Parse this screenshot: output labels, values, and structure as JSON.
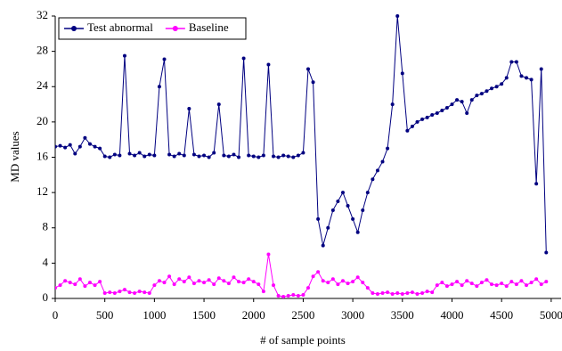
{
  "chart_data": {
    "type": "line",
    "xlabel": "# of sample points",
    "ylabel": "MD values",
    "x": [
      0,
      50,
      100,
      150,
      200,
      250,
      300,
      350,
      400,
      450,
      500,
      550,
      600,
      650,
      700,
      750,
      800,
      850,
      900,
      950,
      1000,
      1050,
      1100,
      1150,
      1200,
      1250,
      1300,
      1350,
      1400,
      1450,
      1500,
      1550,
      1600,
      1650,
      1700,
      1750,
      1800,
      1850,
      1900,
      1950,
      2000,
      2050,
      2100,
      2150,
      2200,
      2250,
      2300,
      2350,
      2400,
      2450,
      2500,
      2550,
      2600,
      2650,
      2700,
      2750,
      2800,
      2850,
      2900,
      2950,
      3000,
      3050,
      3100,
      3150,
      3200,
      3250,
      3300,
      3350,
      3400,
      3450,
      3500,
      3550,
      3600,
      3650,
      3700,
      3750,
      3800,
      3850,
      3900,
      3950,
      4000,
      4050,
      4100,
      4150,
      4200,
      4250,
      4300,
      4350,
      4400,
      4450,
      4500,
      4550,
      4600,
      4650,
      4700,
      4750,
      4800,
      4850,
      4900,
      4950
    ],
    "series": [
      {
        "name": "Test abnormal",
        "color": "#000080",
        "values": [
          17.2,
          17.3,
          17.1,
          17.4,
          16.4,
          17.2,
          18.2,
          17.5,
          17.2,
          17.0,
          16.1,
          16.0,
          16.3,
          16.2,
          27.5,
          16.4,
          16.2,
          16.5,
          16.1,
          16.3,
          16.2,
          24.0,
          27.1,
          16.3,
          16.1,
          16.4,
          16.2,
          21.5,
          16.3,
          16.1,
          16.2,
          16.0,
          16.5,
          22.0,
          16.2,
          16.1,
          16.3,
          16.0,
          27.2,
          16.2,
          16.1,
          16.0,
          16.2,
          26.5,
          16.1,
          16.0,
          16.2,
          16.1,
          16.0,
          16.2,
          16.5,
          26.0,
          24.5,
          9.0,
          6.0,
          8.0,
          10.0,
          11.0,
          12.0,
          10.5,
          9.0,
          7.5,
          10.0,
          12.0,
          13.5,
          14.5,
          15.5,
          17.0,
          22.0,
          32.0,
          25.5,
          19.0,
          19.5,
          20.0,
          20.3,
          20.5,
          20.8,
          21.0,
          21.3,
          21.6,
          22.0,
          22.5,
          22.3,
          21.0,
          22.5,
          23.0,
          23.2,
          23.5,
          23.8,
          24.0,
          24.3,
          25.0,
          26.8,
          26.8,
          25.2,
          25.0,
          24.8,
          13.0,
          26.0,
          5.2
        ]
      },
      {
        "name": "Baseline",
        "color": "#ff00ff",
        "values": [
          1.2,
          1.5,
          2.0,
          1.8,
          1.6,
          2.2,
          1.4,
          1.8,
          1.5,
          1.9,
          0.6,
          0.7,
          0.6,
          0.8,
          1.0,
          0.7,
          0.6,
          0.8,
          0.7,
          0.6,
          1.5,
          2.0,
          1.8,
          2.5,
          1.6,
          2.2,
          1.9,
          2.4,
          1.7,
          2.0,
          1.8,
          2.1,
          1.6,
          2.3,
          2.0,
          1.7,
          2.4,
          1.9,
          1.8,
          2.2,
          1.9,
          1.6,
          0.8,
          5.0,
          1.5,
          0.3,
          0.2,
          0.3,
          0.4,
          0.3,
          0.4,
          1.2,
          2.5,
          3.0,
          2.0,
          1.8,
          2.2,
          1.6,
          2.0,
          1.7,
          1.9,
          2.4,
          1.8,
          1.2,
          0.6,
          0.5,
          0.6,
          0.7,
          0.5,
          0.6,
          0.5,
          0.6,
          0.7,
          0.5,
          0.6,
          0.8,
          0.7,
          1.5,
          1.8,
          1.4,
          1.6,
          1.9,
          1.5,
          2.0,
          1.7,
          1.4,
          1.8,
          2.1,
          1.6,
          1.5,
          1.7,
          1.4,
          1.9,
          1.6,
          2.0,
          1.5,
          1.8,
          2.2,
          1.6,
          1.9
        ]
      }
    ],
    "xlim": [
      0,
      5100
    ],
    "ylim": [
      0,
      32
    ],
    "xticks": [
      0,
      500,
      1000,
      1500,
      2000,
      2500,
      3000,
      3500,
      4000,
      4500,
      5000
    ],
    "yticks": [
      0,
      4,
      8,
      12,
      16,
      20,
      24,
      28,
      32
    ],
    "legend": "upper left",
    "grid": false
  }
}
